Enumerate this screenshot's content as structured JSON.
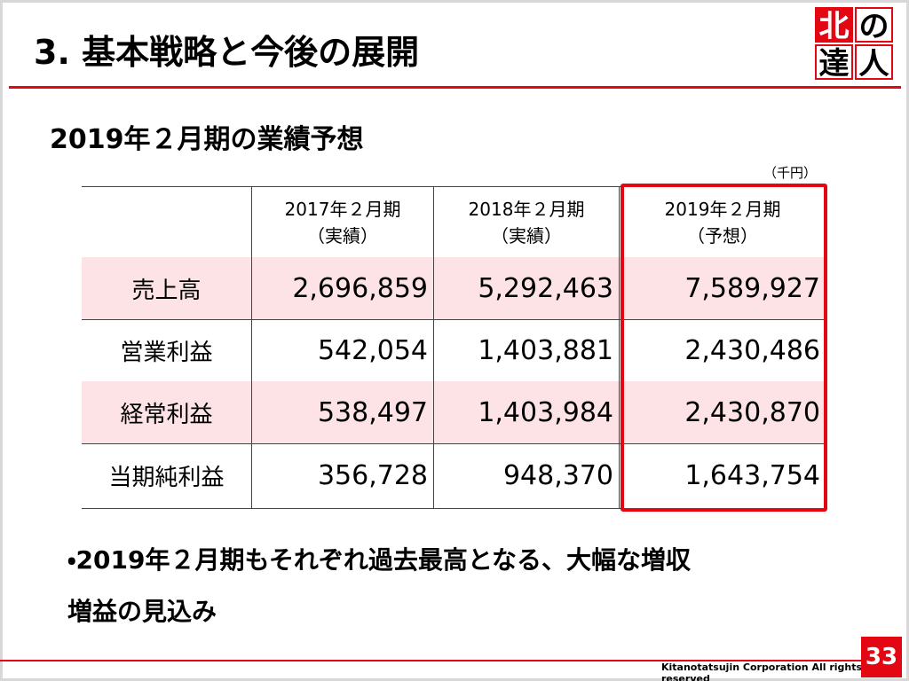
{
  "header": {
    "title": "3. 基本戦略と今後の展開",
    "logo": [
      "北",
      "の",
      "達",
      "人"
    ]
  },
  "subtitle": "2019年２月期の業績予想",
  "unit": "（千円）",
  "table": {
    "columns": [
      {
        "period": "2017年２月期",
        "kind": "（実績）"
      },
      {
        "period": "2018年２月期",
        "kind": "（実績）"
      },
      {
        "period": "2019年２月期",
        "kind": "（予想）"
      }
    ],
    "rows": [
      [
        "売上高",
        "2,696,859",
        "5,292,463",
        "7,589,927"
      ],
      [
        "営業利益",
        "542,054",
        "1,403,881",
        "2,430,486"
      ],
      [
        "経常利益",
        "538,497",
        "1,403,984",
        "2,430,870"
      ],
      [
        "当期純利益",
        "356,728",
        "948,370",
        "1,643,754"
      ]
    ]
  },
  "note": [
    "・2019年２月期もそれぞれ過去最高となる、大幅な増収",
    "増益の見込み"
  ],
  "footer": {
    "copyright": "Kitanotatsujin Corporation All rights reserved",
    "page": "33"
  }
}
